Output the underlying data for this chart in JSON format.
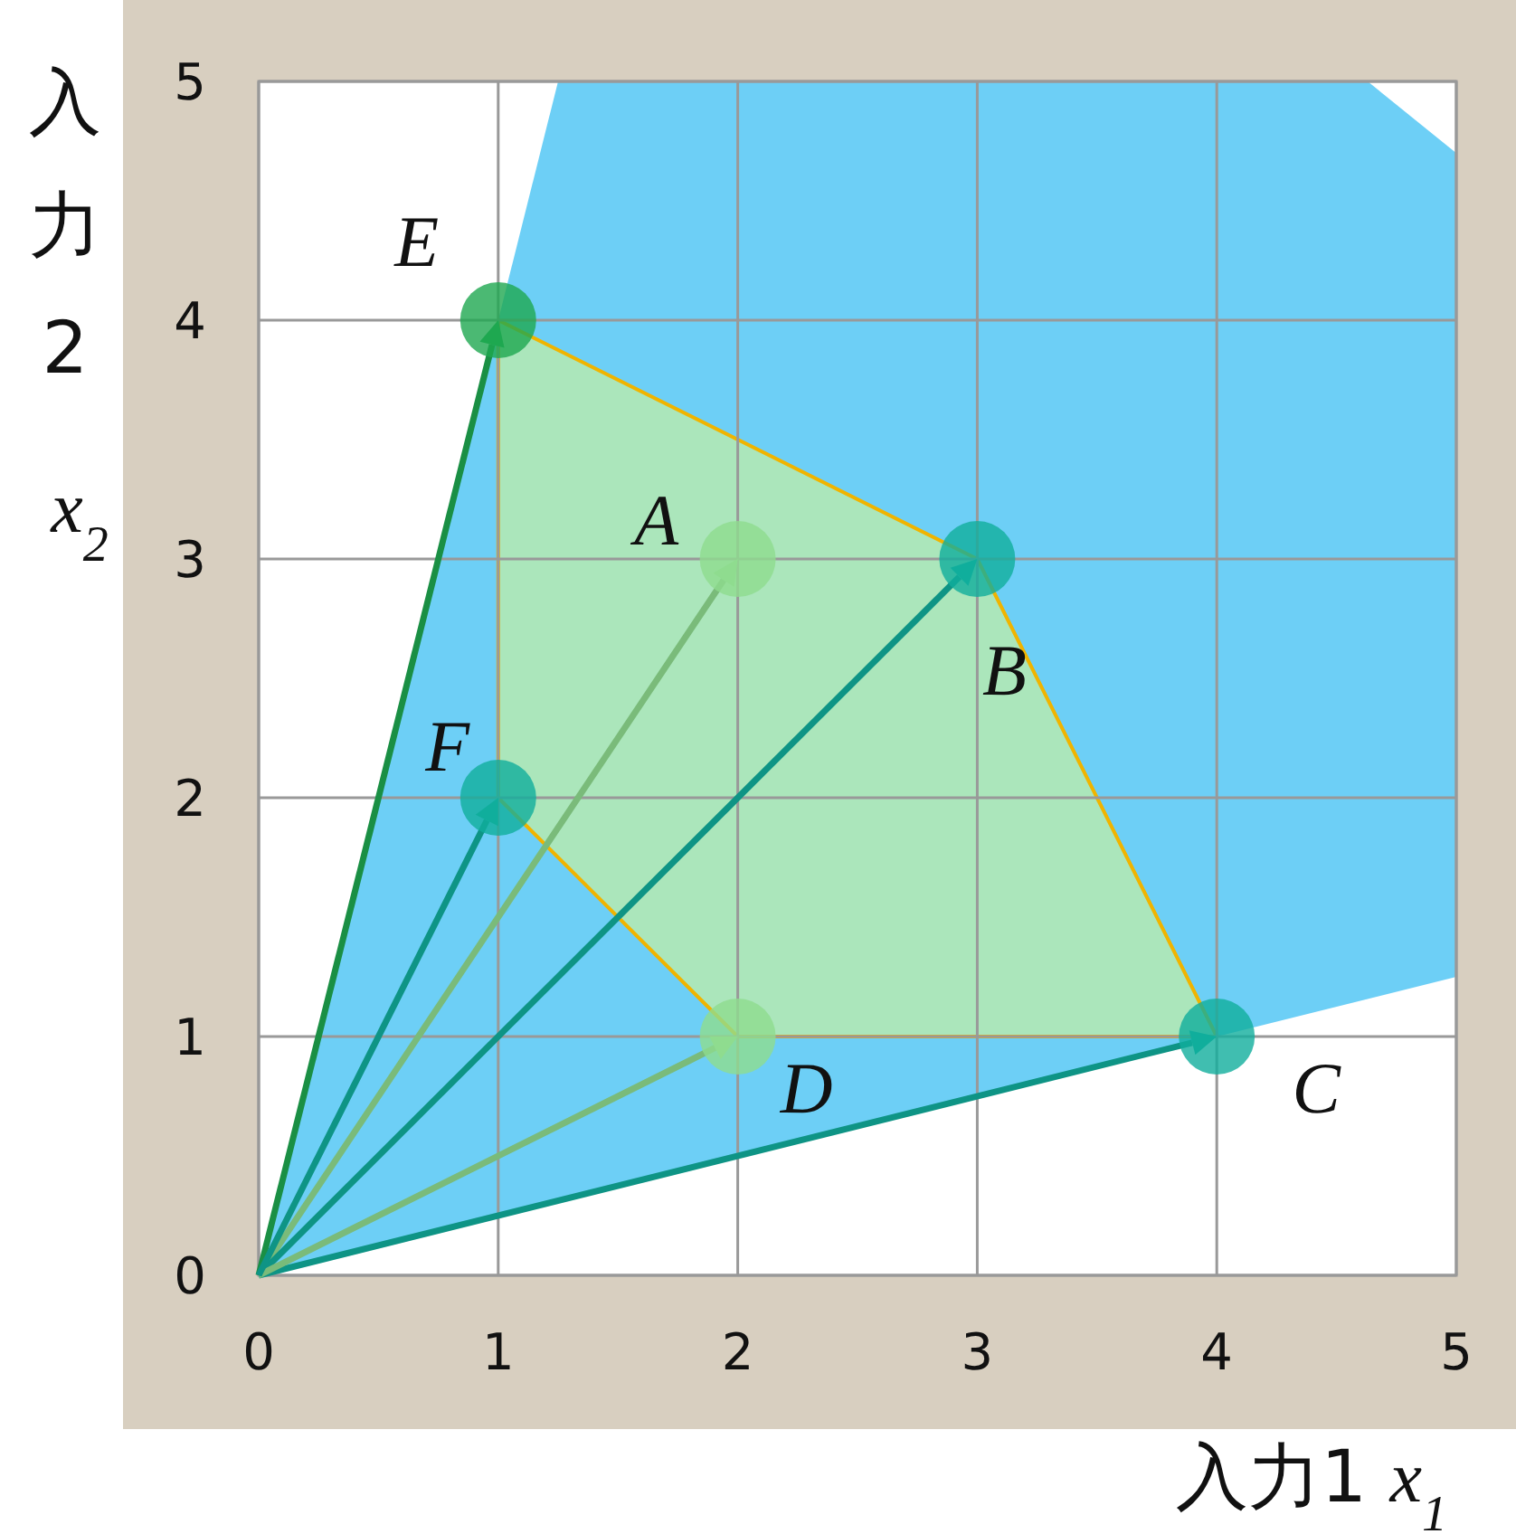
{
  "chart_data": {
    "type": "scatter",
    "xlabel": "入力1 x$_{1}$",
    "ylabel": "入力2 x$_{2}$",
    "xlim": [
      0,
      5
    ],
    "ylim": [
      0,
      5
    ],
    "xticks": [
      0,
      1,
      2,
      3,
      4,
      5
    ],
    "yticks": [
      0,
      1,
      2,
      3,
      4,
      5
    ],
    "grid": true,
    "series": [
      {
        "type": "area",
        "color": "#6dcff6",
        "x": [
          0,
          1.25,
          4.63,
          5,
          5
        ],
        "values": [
          0,
          5,
          5,
          4.7,
          1.25
        ]
      },
      {
        "type": "area",
        "color": "#b6eab0",
        "x": [
          1,
          3,
          4,
          2,
          1,
          1
        ],
        "values": [
          4,
          3,
          1,
          1,
          2,
          4
        ]
      },
      {
        "marker": "circle",
        "x": [
          2,
          3,
          4,
          2,
          1,
          1
        ],
        "values": [
          3,
          3,
          1,
          1,
          4,
          2
        ],
        "colors": [
          "#8fdc8f",
          "#10ae9c",
          "#10ae9c",
          "#8fdc8f",
          "#1ea850",
          "#10ae9c"
        ]
      }
    ],
    "annotations": [
      {
        "text": "A",
        "x": 2,
        "y": 3
      },
      {
        "text": "B",
        "x": 3,
        "y": 3
      },
      {
        "text": "C",
        "x": 4,
        "y": 1
      },
      {
        "text": "D",
        "x": 2,
        "y": 1
      },
      {
        "text": "E",
        "x": 1,
        "y": 4
      },
      {
        "text": "F",
        "x": 1,
        "y": 2
      }
    ]
  }
}
